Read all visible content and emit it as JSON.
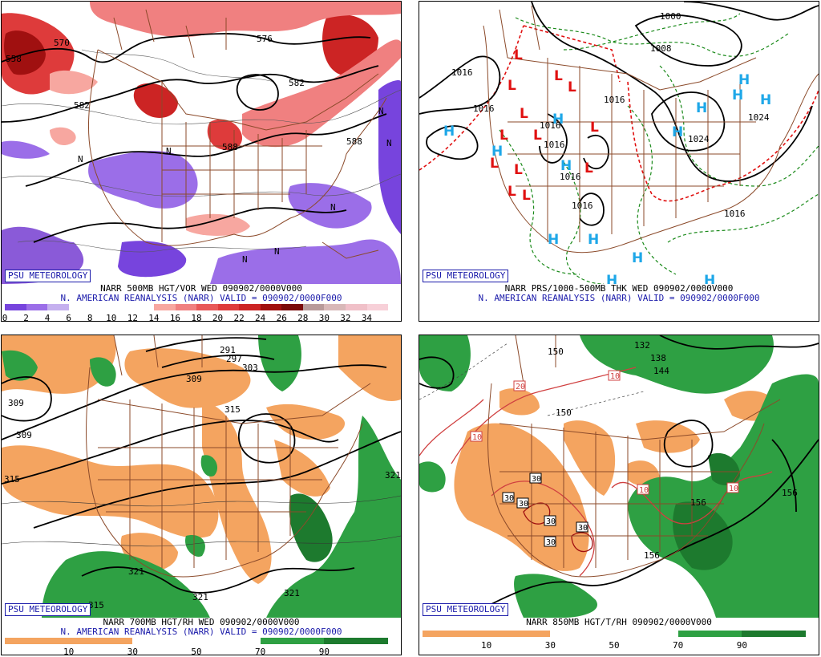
{
  "credit": "PSU METEOROLOGY",
  "panels": [
    {
      "title": "NARR 500MB HGT/VOR WED 090902/0000V000",
      "subtitle": "N. AMERICAN REANALYSIS (NARR) VALID = 090902/0000F000",
      "scale_labels": [
        "0",
        "2",
        "4",
        "6",
        "8",
        "10",
        "12",
        "14",
        "16",
        "18",
        "20",
        "22",
        "24",
        "26",
        "28",
        "30",
        "32",
        "34"
      ],
      "scale_colors": [
        "#7744dd",
        "#9b6ee8",
        "#c5b0ef",
        "#ffffff",
        "#ffffff",
        "#ffffff",
        "#ffffff",
        "#f7a7a0",
        "#f08080",
        "#e85858",
        "#de3b3b",
        "#cc2424",
        "#a01010",
        "#7a0a0a",
        "#b89a9a",
        "#d8b8b8",
        "#f0c0c8",
        "#f7d0d8"
      ],
      "contour_labels": [
        "558",
        "570",
        "576",
        "582",
        "582",
        "588",
        "588"
      ],
      "n_label": "N"
    },
    {
      "title": "NARR PRS/1000-500MB THK WED 090902/0000V000",
      "subtitle": "N. AMERICAN REANALYSIS (NARR) VALID = 090902/0000F000",
      "isobar_labels": [
        "1016",
        "1016",
        "1016",
        "1016",
        "1016",
        "1016",
        "1008",
        "1000",
        "1024",
        "1024",
        "1016",
        "1016"
      ],
      "high_label": "H",
      "low_label": "L"
    },
    {
      "title": "NARR 700MB HGT/RH WED 090902/0000V000",
      "subtitle": "N. AMERICAN REANALYSIS (NARR) VALID = 090902/0000F000",
      "scale_labels": [
        "10",
        "30",
        "50",
        "70",
        "90"
      ],
      "scale_colors": [
        "#f4a460",
        "#f4a460",
        "#ffffff",
        "#ffffff",
        "#2ea043",
        "#1d7a2e"
      ],
      "contour_labels": [
        "291",
        "297",
        "303",
        "309",
        "309",
        "309",
        "315",
        "315",
        "321",
        "321",
        "321",
        "315"
      ]
    },
    {
      "title": "NARR 850MB HGT/T/RH 090902/0000V000",
      "subtitle": "",
      "scale_labels": [
        "10",
        "30",
        "50",
        "70",
        "90"
      ],
      "scale_colors": [
        "#f4a460",
        "#f4a460",
        "#ffffff",
        "#ffffff",
        "#2ea043",
        "#1d7a2e"
      ],
      "contour_labels": [
        "150",
        "150",
        "138",
        "144",
        "132",
        "156",
        "156",
        "156"
      ],
      "temp_labels": [
        "10",
        "10",
        "10",
        "10",
        "20",
        "30",
        "30",
        "30",
        "30",
        "30",
        "30"
      ]
    }
  ],
  "colors": {
    "states": "#8b4a2a",
    "credit": "#1a1aaa",
    "high": "#1ea7e8",
    "low": "#e01010",
    "rh_low": "#f4a460",
    "rh_high": "#2ea043"
  }
}
